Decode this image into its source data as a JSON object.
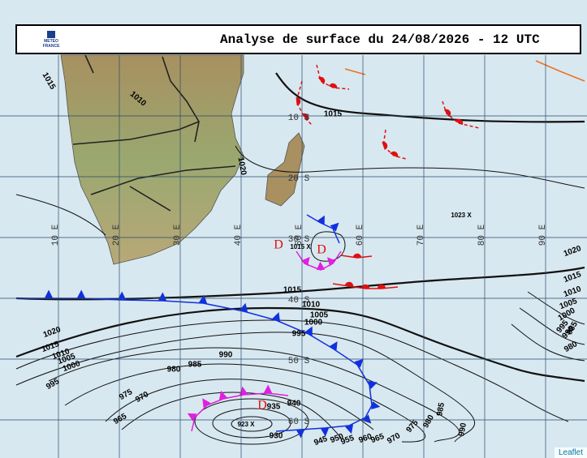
{
  "header": {
    "title": "Analyse de surface du 24/08/2026 - 12 UTC",
    "logo": [
      "METEO",
      "FRANCE"
    ]
  },
  "grid": {
    "latitudes": [
      "10 S",
      "20 S",
      "30 S",
      "40 S",
      "50 S",
      "60 S"
    ],
    "longitudes": [
      "10 E",
      "20 E",
      "30 E",
      "40 E",
      "50 E",
      "60 E",
      "70 E",
      "80 E",
      "90 E"
    ]
  },
  "isobar_labels": [
    "1015",
    "1010",
    "1020",
    "1015",
    "1023  X",
    "1015  X",
    "1015",
    "1010",
    "1005",
    "1000",
    "995",
    "990",
    "985",
    "980",
    "1020",
    "1015",
    "1010",
    "1005",
    "1000",
    "995",
    "975",
    "970",
    "965",
    "935",
    "940",
    "923  X",
    "930",
    "945",
    "950",
    "955",
    "960",
    "965",
    "970",
    "975",
    "980",
    "985",
    "990",
    "1020",
    "1015",
    "1010",
    "1005",
    "1000",
    "995",
    "990",
    "985",
    "980"
  ],
  "lows": [
    "D",
    "D",
    "D"
  ],
  "attribution": "Leaflet"
}
